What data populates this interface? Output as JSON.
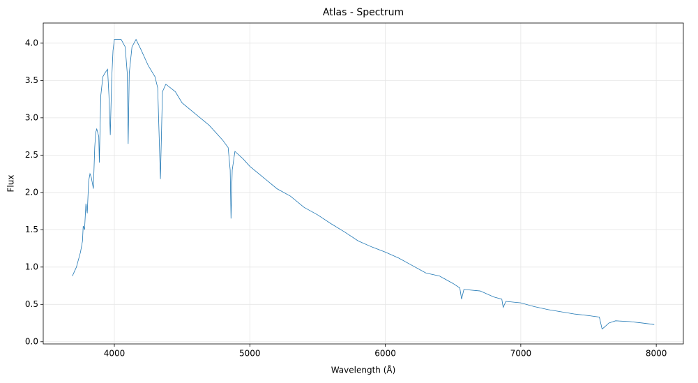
{
  "chart_data": {
    "type": "line",
    "title": "Atlas - Spectrum",
    "xlabel": "Wavelength (Å)",
    "ylabel": "Flux",
    "color": "#1f77b4",
    "grid": true,
    "xlim": [
      3475,
      8200
    ],
    "ylim": [
      -0.03,
      4.27
    ],
    "xticks": [
      4000,
      5000,
      6000,
      7000,
      8000
    ],
    "yticks": [
      {
        "value": 0,
        "label": "0.0"
      },
      0.5,
      {
        "value": 1,
        "label": "1.0"
      },
      1.5,
      {
        "value": 2,
        "label": "2.0"
      },
      2.5,
      {
        "value": 3,
        "label": "3.0"
      },
      3.5,
      {
        "value": 4,
        "label": "4.0"
      }
    ],
    "x": [
      3690,
      3720,
      3750,
      3765,
      3770,
      3780,
      3790,
      3800,
      3810,
      3820,
      3830,
      3845,
      3855,
      3862,
      3870,
      3885,
      3889,
      3895,
      3900,
      3915,
      3930,
      3950,
      3960,
      3970,
      3980,
      3990,
      4000,
      4050,
      4080,
      4095,
      4102,
      4110,
      4130,
      4160,
      4200,
      4250,
      4300,
      4320,
      4340,
      4355,
      4380,
      4450,
      4500,
      4600,
      4700,
      4800,
      4840,
      4855,
      4861,
      4870,
      4890,
      4950,
      5000,
      5100,
      5200,
      5300,
      5400,
      5500,
      5600,
      5700,
      5800,
      5900,
      6000,
      6100,
      6200,
      6300,
      6400,
      6500,
      6550,
      6563,
      6580,
      6700,
      6800,
      6860,
      6870,
      6890,
      7000,
      7100,
      7200,
      7300,
      7400,
      7500,
      7580,
      7600,
      7620,
      7650,
      7700,
      7800,
      7900,
      7985
    ],
    "values": [
      0.88,
      1.0,
      1.2,
      1.35,
      1.55,
      1.5,
      1.85,
      1.72,
      2.15,
      2.25,
      2.2,
      2.05,
      2.6,
      2.8,
      2.85,
      2.75,
      2.4,
      2.9,
      3.3,
      3.55,
      3.6,
      3.65,
      3.3,
      2.77,
      3.5,
      3.9,
      4.05,
      4.05,
      3.95,
      3.6,
      2.65,
      3.6,
      3.95,
      4.05,
      3.9,
      3.7,
      3.55,
      3.4,
      2.18,
      3.35,
      3.45,
      3.35,
      3.2,
      3.05,
      2.9,
      2.7,
      2.6,
      2.3,
      1.65,
      2.3,
      2.55,
      2.45,
      2.35,
      2.2,
      2.05,
      1.95,
      1.8,
      1.7,
      1.58,
      1.47,
      1.35,
      1.27,
      1.2,
      1.12,
      1.02,
      0.92,
      0.88,
      0.78,
      0.72,
      0.57,
      0.7,
      0.68,
      0.6,
      0.57,
      0.46,
      0.54,
      0.52,
      0.47,
      0.43,
      0.4,
      0.37,
      0.35,
      0.33,
      0.17,
      0.2,
      0.25,
      0.28,
      0.27,
      0.25,
      0.23
    ]
  }
}
